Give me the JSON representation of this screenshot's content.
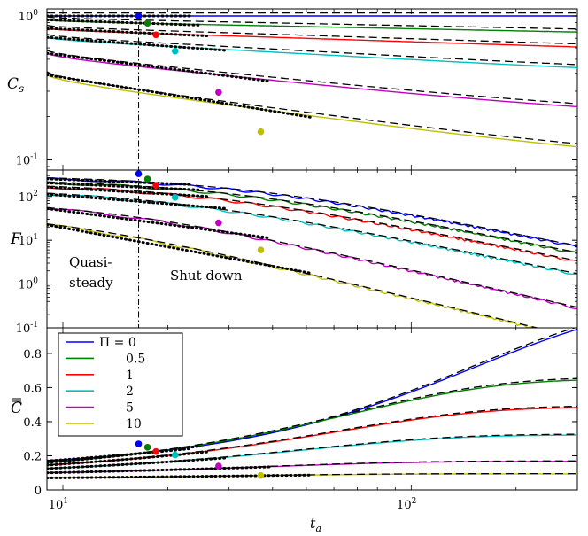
{
  "chart_data": {
    "type": "line",
    "shared_x": {
      "label": "t_a",
      "scale": "log",
      "range": [
        9,
        300
      ],
      "ticks": [
        {
          "v": 10,
          "label": "10^1"
        },
        {
          "v": 100,
          "label": "10^2"
        }
      ]
    },
    "colors": {
      "0": "#0000ff",
      "0.5": "#007f00",
      "1": "#ff0000",
      "2": "#00bfbf",
      "5": "#bf00bf",
      "10": "#bfbf00"
    },
    "quasi_steady_t": 16.5,
    "legend": {
      "title": "Π = 0",
      "entries": [
        "Π = 0",
        "0.5",
        "1",
        "2",
        "5",
        "10"
      ],
      "location": "upper-left (bottom panel)"
    },
    "panels": [
      {
        "id": "cs",
        "ylabel": "C_s",
        "yscale": "log",
        "yrange": [
          0.085,
          1.12
        ],
        "yticks": [
          {
            "v": 1,
            "label": "10^0"
          },
          {
            "v": 0.1,
            "label": "10^-1"
          }
        ],
        "series": [
          {
            "pi": "0",
            "color_key": "0",
            "y0": 1.0,
            "yinf": 1.0,
            "tau": 100,
            "mid": 0.5,
            "marker": [
              16.5,
              1.0
            ]
          },
          {
            "pi": "0.5",
            "color_key": "0.5",
            "y0": 0.94,
            "yinf": 0.67,
            "tau": 120,
            "mid": 0.55,
            "marker": [
              17.5,
              0.89
            ]
          },
          {
            "pi": "1",
            "color_key": "1",
            "y0": 0.82,
            "yinf": 0.505,
            "tau": 90,
            "mid": 0.6,
            "marker": [
              18.5,
              0.74
            ]
          },
          {
            "pi": "2",
            "color_key": "2",
            "y0": 0.71,
            "yinf": 0.345,
            "tau": 55,
            "mid": 0.65,
            "marker": [
              21,
              0.57
            ]
          },
          {
            "pi": "5",
            "color_key": "5",
            "y0": 0.55,
            "yinf": 0.17,
            "tau": 30,
            "mid": 0.7,
            "marker": [
              28,
              0.295
            ]
          },
          {
            "pi": "10",
            "color_key": "10",
            "y0": 0.39,
            "yinf": 0.077,
            "tau": 24,
            "mid": 0.7,
            "marker": [
              37,
              0.157
            ]
          }
        ]
      },
      {
        "id": "f",
        "ylabel": "F",
        "yscale": "log",
        "yrange": [
          0.1,
          400
        ],
        "yticks": [
          {
            "v": 100,
            "label": "10^2"
          },
          {
            "v": 10,
            "label": "10^1"
          },
          {
            "v": 1,
            "label": "10^0"
          },
          {
            "v": 0.1,
            "label": "10^-1"
          }
        ],
        "annotations": [
          "Quasi-",
          "steady",
          "Shut down"
        ],
        "series": [
          {
            "pi": "0",
            "color_key": "0",
            "y0": 290,
            "tau": 30,
            "p": 1.6,
            "marker": [
              16.5,
              330
            ]
          },
          {
            "pi": "0.5",
            "color_key": "0.5",
            "y0": 240,
            "tau": 27,
            "p": 1.6,
            "marker": [
              17.5,
              250
            ]
          },
          {
            "pi": "1",
            "color_key": "1",
            "y0": 200,
            "tau": 23,
            "p": 1.6,
            "marker": [
              18.5,
              180
            ]
          },
          {
            "pi": "2",
            "color_key": "2",
            "y0": 150,
            "tau": 18,
            "p": 1.6,
            "marker": [
              21,
              95
            ]
          },
          {
            "pi": "5",
            "color_key": "5",
            "y0": 80,
            "tau": 13,
            "p": 1.8,
            "marker": [
              28,
              25
            ]
          },
          {
            "pi": "10",
            "color_key": "10",
            "y0": 45,
            "tau": 9,
            "p": 1.9,
            "marker": [
              37,
              6
            ]
          }
        ]
      },
      {
        "id": "c",
        "ylabel": "C̿",
        "yscale": "linear",
        "yrange": [
          0,
          0.95
        ],
        "yticks": [
          {
            "v": 0.8,
            "label": "0.8"
          },
          {
            "v": 0.6,
            "label": "0.6"
          },
          {
            "v": 0.4,
            "label": "0.4"
          },
          {
            "v": 0.2,
            "label": "0.2"
          },
          {
            "v": 0,
            "label": "0"
          }
        ],
        "series": [
          {
            "pi": "0",
            "color_key": "0",
            "y0": 0.17,
            "yinf": 1.12,
            "tau": 140,
            "mid": 1.0,
            "marker": [
              16.5,
              0.27
            ]
          },
          {
            "pi": "0.5",
            "color_key": "0.5",
            "y0": 0.16,
            "yinf": 0.67,
            "tau": 60,
            "mid": 1.0,
            "marker": [
              17.5,
              0.25
            ]
          },
          {
            "pi": "1",
            "color_key": "1",
            "y0": 0.145,
            "yinf": 0.5,
            "tau": 55,
            "mid": 1.0,
            "marker": [
              18.5,
              0.225
            ]
          },
          {
            "pi": "2",
            "color_key": "2",
            "y0": 0.125,
            "yinf": 0.33,
            "tau": 45,
            "mid": 1.0,
            "marker": [
              21,
              0.205
            ]
          },
          {
            "pi": "5",
            "color_key": "5",
            "y0": 0.1,
            "yinf": 0.17,
            "tau": 35,
            "mid": 1.0,
            "marker": [
              28,
              0.14
            ]
          },
          {
            "pi": "10",
            "color_key": "10",
            "y0": 0.07,
            "yinf": 0.095,
            "tau": 30,
            "mid": 1.0,
            "marker": [
              37,
              0.085
            ]
          }
        ]
      }
    ]
  }
}
